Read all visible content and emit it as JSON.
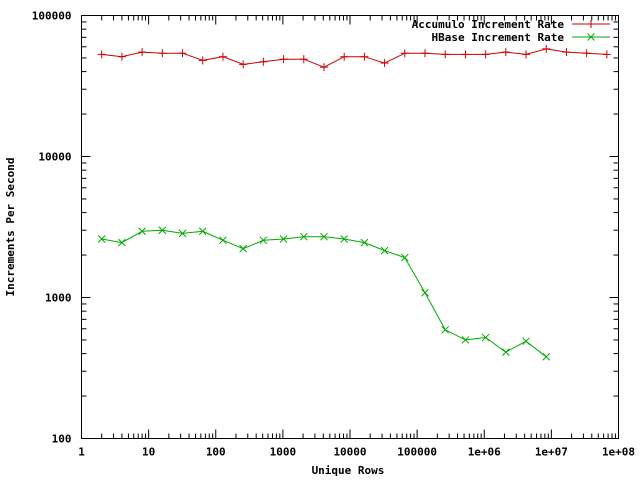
{
  "chart_data": {
    "type": "line",
    "title": "",
    "xlabel": "Unique Rows",
    "ylabel": "Increments Per Second",
    "x_scale": "log",
    "y_scale": "log",
    "xlim": [
      1,
      100000000
    ],
    "ylim": [
      100,
      100000
    ],
    "grid": false,
    "legend_position": "top-right",
    "x_ticks": [
      {
        "value": 1,
        "label": "1"
      },
      {
        "value": 10,
        "label": "10"
      },
      {
        "value": 100,
        "label": "100"
      },
      {
        "value": 1000,
        "label": "1000"
      },
      {
        "value": 10000,
        "label": "10000"
      },
      {
        "value": 100000,
        "label": "100000"
      },
      {
        "value": 1000000,
        "label": "1e+06"
      },
      {
        "value": 10000000,
        "label": "1e+07"
      },
      {
        "value": 100000000,
        "label": "1e+08"
      }
    ],
    "y_ticks": [
      {
        "value": 100,
        "label": "100"
      },
      {
        "value": 1000,
        "label": "1000"
      },
      {
        "value": 10000,
        "label": "10000"
      },
      {
        "value": 100000,
        "label": "100000"
      }
    ],
    "series": [
      {
        "name": "Accumulo Increment Rate",
        "color": "#cc0000",
        "marker": "plus",
        "x": [
          2,
          4,
          8,
          16,
          32,
          64,
          128,
          256,
          512,
          1024,
          2048,
          4096,
          8192,
          16384,
          32768,
          65536,
          131072,
          262144,
          524288,
          1048576,
          2097152,
          4194304,
          8388608,
          16777216,
          33554432,
          67108864
        ],
        "y": [
          53000,
          51000,
          55000,
          54000,
          54000,
          48000,
          51000,
          45000,
          47000,
          49000,
          49000,
          43000,
          51000,
          51000,
          46000,
          54000,
          54000,
          53000,
          53000,
          53000,
          55000,
          53000,
          58000,
          55000,
          54000,
          53000
        ]
      },
      {
        "name": "HBase Increment Rate",
        "color": "#00aa00",
        "marker": "cross",
        "x": [
          2,
          4,
          8,
          16,
          32,
          64,
          128,
          256,
          512,
          1024,
          2048,
          4096,
          8192,
          16384,
          32768,
          65536,
          131072,
          262144,
          524288,
          1048576,
          2097152,
          4194304,
          8388608
        ],
        "y": [
          2600,
          2450,
          2950,
          3000,
          2850,
          2950,
          2550,
          2220,
          2550,
          2600,
          2700,
          2700,
          2600,
          2450,
          2150,
          1920,
          1080,
          590,
          500,
          520,
          410,
          490,
          380
        ]
      }
    ]
  }
}
